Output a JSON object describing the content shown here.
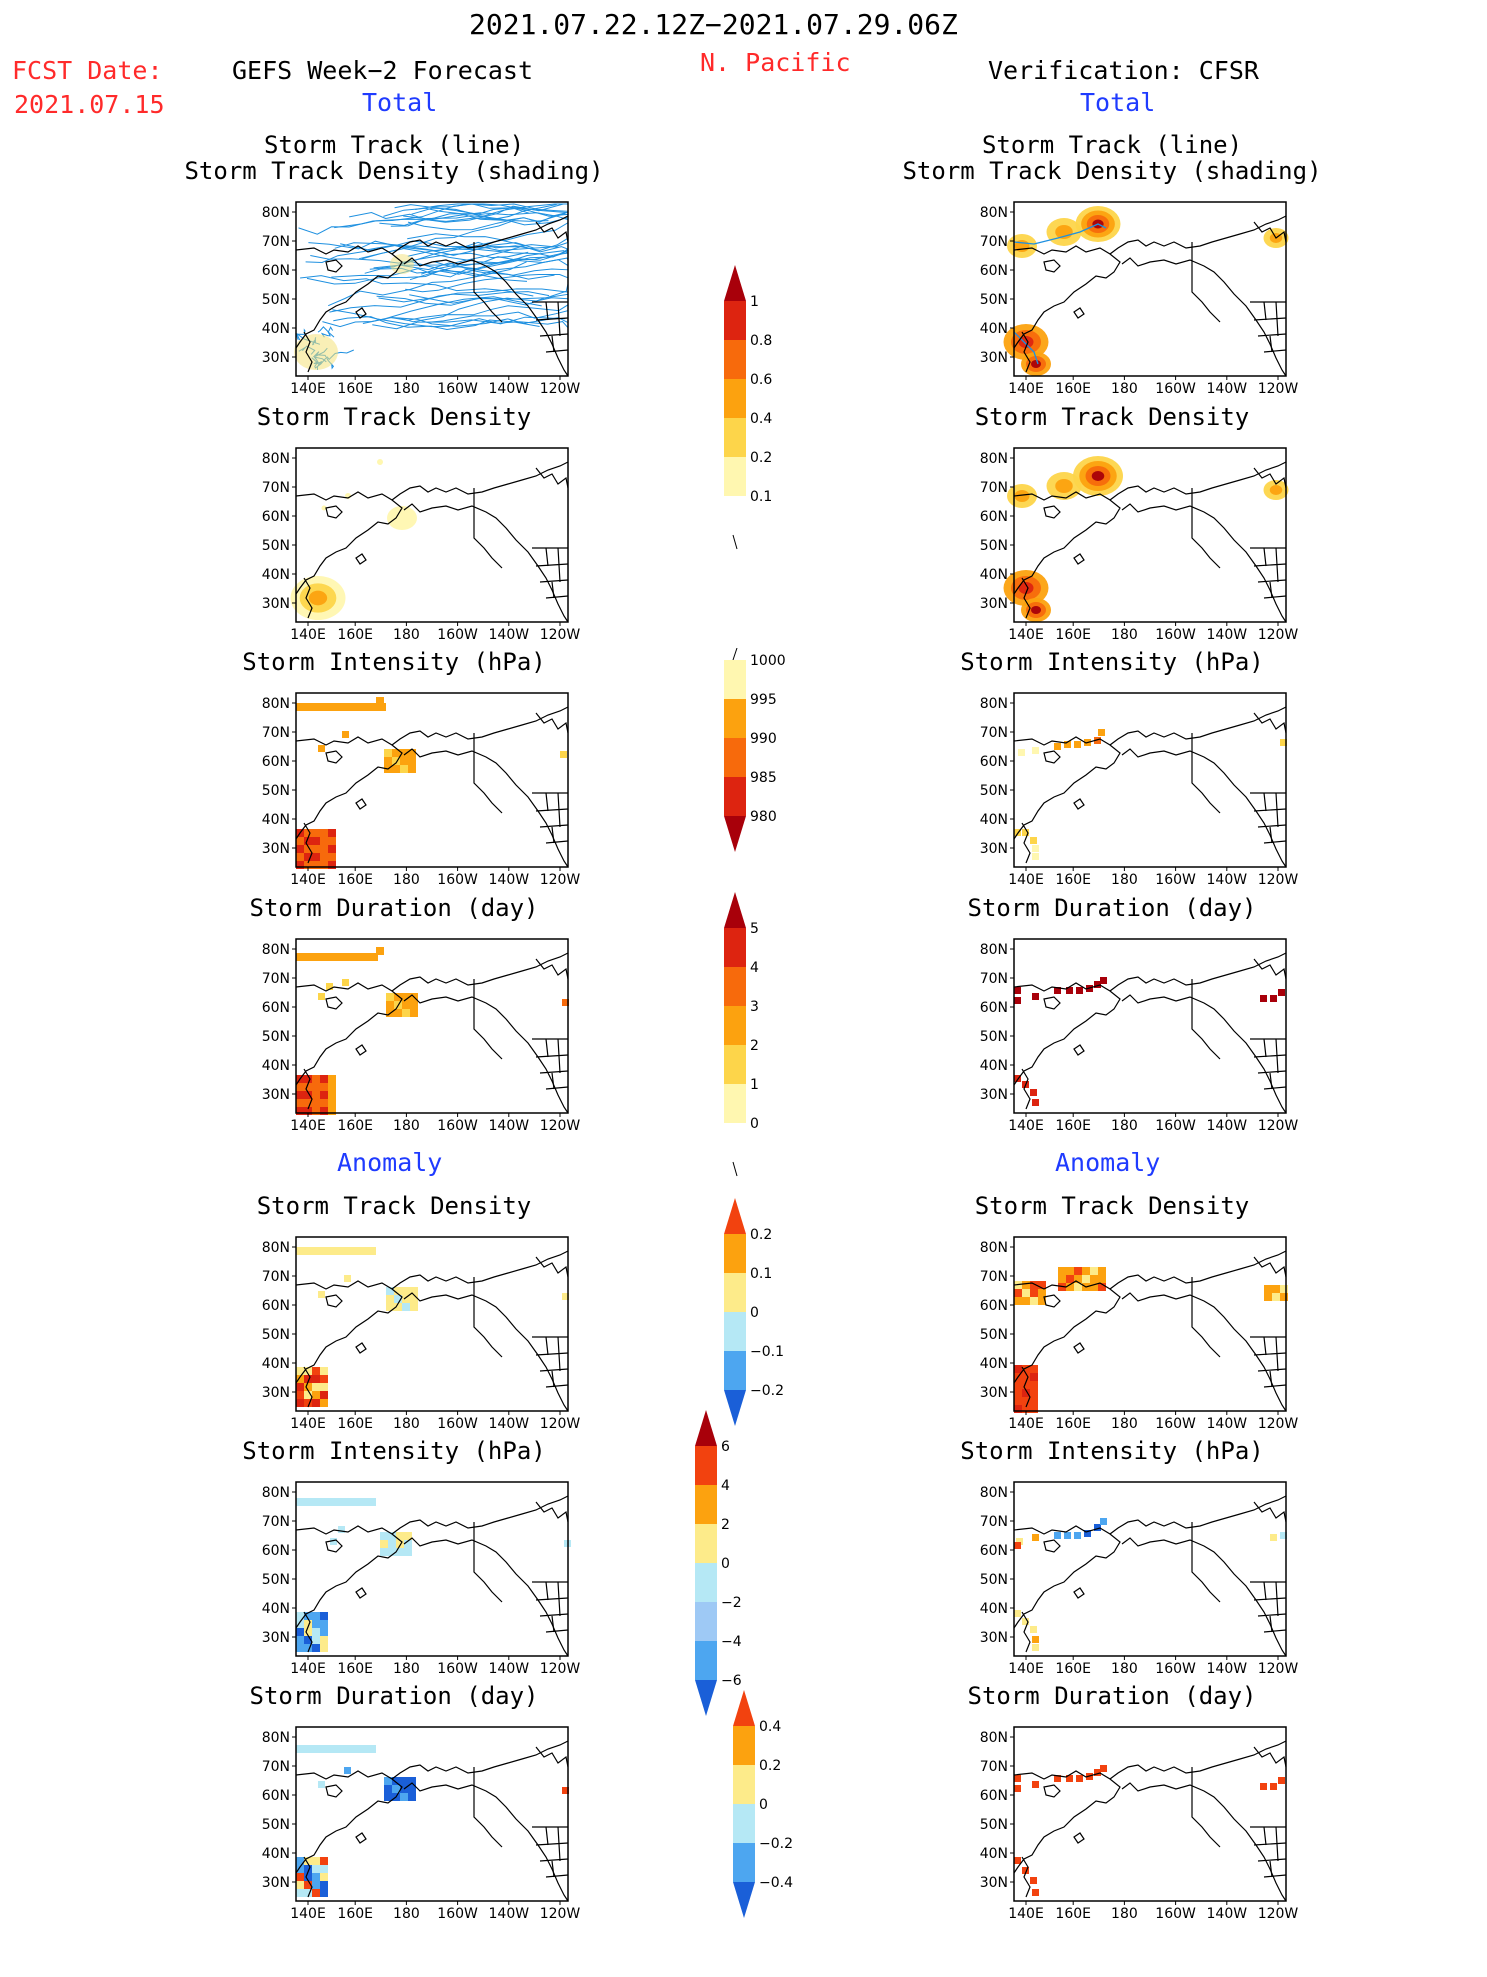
{
  "header": {
    "period": "2021.07.22.12Z−2021.07.29.06Z",
    "fcst_label": "FCST Date:",
    "fcst_date": "2021.07.15",
    "left_title": "GEFS Week−2 Forecast",
    "region": "N. Pacific",
    "right_title": "Verification: CFSR",
    "total_label": "Total",
    "anomaly_label": "Anomaly"
  },
  "panel_titles": {
    "track_line": "Storm Track (line)",
    "track_shading": "Storm Track Density (shading)",
    "density": "Storm Track Density",
    "intensity": "Storm Intensity (hPa)",
    "duration": "Storm Duration (day)"
  },
  "axes": {
    "lon_ticks": [
      "140E",
      "160E",
      "180",
      "160W",
      "140W",
      "120W"
    ],
    "lat_ticks": [
      "80N",
      "70N",
      "60N",
      "50N",
      "40N",
      "30N"
    ]
  },
  "colorbars": {
    "density_total": [
      "1",
      "0.8",
      "0.6",
      "0.4",
      "0.2",
      "0.1"
    ],
    "intensity_total": [
      "1000",
      "995",
      "990",
      "985",
      "980"
    ],
    "duration_total": [
      "5",
      "4",
      "3",
      "2",
      "1",
      "0"
    ],
    "density_anom": [
      "0.2",
      "0.1",
      "0",
      "−0.1",
      "−0.2"
    ],
    "intensity_anom": [
      "6",
      "4",
      "2",
      "0",
      "−2",
      "−4",
      "−6"
    ],
    "duration_anom": [
      "0.4",
      "0.2",
      "0",
      "−0.2",
      "−0.4"
    ]
  },
  "colors": {
    "title_red": "#ff2a2a",
    "label_blue": "#1f3bff",
    "track_line": "#1e90e0",
    "warm_scale": [
      "#fff7b0",
      "#fdd54a",
      "#fca20f",
      "#f76a0c",
      "#dd2410",
      "#a8000a"
    ],
    "anom_scale": [
      "#1a5fd8",
      "#4da6f0",
      "#b5e8f5",
      "#fdeb8a",
      "#fca20f",
      "#f2420f"
    ]
  }
}
